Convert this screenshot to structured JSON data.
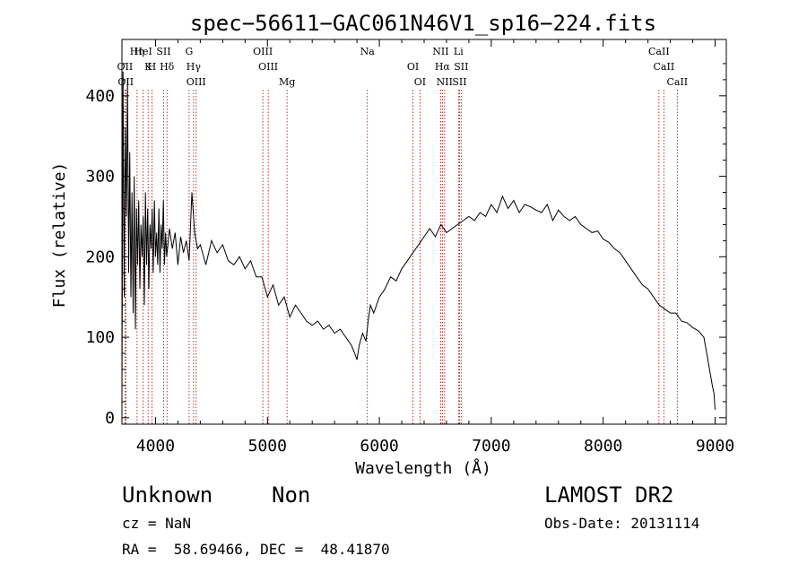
{
  "chart_data": {
    "type": "line",
    "title": "spec−56611−GAC061N46V1_sp16−224.fits",
    "xlabel": "Wavelength (Å)",
    "ylabel": "Flux (relative)",
    "xlim": [
      3700,
      9100
    ],
    "ylim": [
      -8,
      470
    ],
    "xticks": [
      4000,
      5000,
      6000,
      7000,
      8000,
      9000
    ],
    "yticks": [
      0,
      100,
      200,
      300,
      400
    ],
    "series": [
      {
        "x": [
          3700,
          3710,
          3720,
          3730,
          3740,
          3750,
          3760,
          3770,
          3780,
          3790,
          3800,
          3810,
          3820,
          3830,
          3840,
          3850,
          3860,
          3870,
          3880,
          3890,
          3900,
          3910,
          3920,
          3930,
          3940,
          3950,
          3960,
          3970,
          3980,
          3990,
          4000,
          4010,
          4020,
          4030,
          4040,
          4050,
          4060,
          4070,
          4080,
          4090,
          4100,
          4125,
          4150,
          4175,
          4200,
          4225,
          4250,
          4275,
          4300,
          4325,
          4350,
          4375,
          4400,
          4450,
          4500,
          4550,
          4600,
          4650,
          4700,
          4750,
          4800,
          4850,
          4900,
          4950,
          5000,
          5050,
          5100,
          5150,
          5200,
          5250,
          5300,
          5350,
          5400,
          5450,
          5500,
          5550,
          5600,
          5650,
          5700,
          5750,
          5780,
          5800,
          5820,
          5850,
          5880,
          5900,
          5920,
          5950,
          6000,
          6050,
          6100,
          6150,
          6200,
          6250,
          6300,
          6350,
          6400,
          6450,
          6500,
          6550,
          6600,
          6650,
          6700,
          6750,
          6800,
          6850,
          6900,
          6950,
          7000,
          7050,
          7100,
          7150,
          7200,
          7250,
          7300,
          7350,
          7400,
          7450,
          7500,
          7550,
          7600,
          7650,
          7700,
          7750,
          7800,
          7850,
          7900,
          7950,
          8000,
          8050,
          8100,
          8150,
          8200,
          8250,
          8300,
          8350,
          8400,
          8450,
          8500,
          8550,
          8600,
          8650,
          8700,
          8750,
          8800,
          8850,
          8900,
          8925,
          8950,
          8975,
          8990,
          9000
        ],
        "values": [
          30,
          430,
          150,
          360,
          250,
          420,
          180,
          330,
          150,
          280,
          130,
          300,
          110,
          260,
          190,
          270,
          160,
          240,
          200,
          250,
          140,
          280,
          190,
          260,
          160,
          240,
          210,
          260,
          180,
          270,
          200,
          230,
          190,
          260,
          180,
          240,
          210,
          270,
          190,
          230,
          200,
          235,
          210,
          230,
          190,
          225,
          205,
          220,
          195,
          280,
          230,
          210,
          215,
          190,
          220,
          205,
          215,
          195,
          190,
          200,
          185,
          195,
          175,
          175,
          150,
          165,
          140,
          150,
          125,
          140,
          130,
          120,
          115,
          120,
          110,
          115,
          105,
          110,
          100,
          90,
          80,
          72,
          90,
          105,
          95,
          120,
          140,
          130,
          150,
          160,
          175,
          170,
          185,
          195,
          205,
          215,
          225,
          235,
          225,
          240,
          230,
          235,
          240,
          245,
          250,
          245,
          255,
          250,
          265,
          255,
          275,
          260,
          270,
          255,
          265,
          262,
          258,
          255,
          265,
          245,
          258,
          250,
          245,
          250,
          240,
          235,
          230,
          232,
          222,
          218,
          210,
          205,
          195,
          185,
          175,
          165,
          160,
          150,
          140,
          135,
          130,
          130,
          120,
          118,
          112,
          108,
          100,
          80,
          60,
          40,
          30,
          10
        ]
      }
    ],
    "annotations": [
      {
        "wavelength": 3727,
        "rows": [
          "OII"
        ]
      },
      {
        "wavelength": 3734,
        "rows": [
          "",
          "OII"
        ]
      },
      {
        "wavelength": 3835,
        "rows": [
          "",
          "",
          "Hη"
        ]
      },
      {
        "wavelength": 3889,
        "rows": [
          "",
          "",
          "HeI"
        ]
      },
      {
        "wavelength": 3934,
        "rows": [
          "K"
        ]
      },
      {
        "wavelength": 3968,
        "rows": [
          "H"
        ]
      },
      {
        "wavelength": 4072,
        "rows": [
          "",
          "",
          "SII"
        ]
      },
      {
        "wavelength": 4102,
        "rows": [
          "Hδ"
        ]
      },
      {
        "wavelength": 4300,
        "rows": [
          "",
          "",
          "G"
        ]
      },
      {
        "wavelength": 4340,
        "rows": [
          "Hγ"
        ]
      },
      {
        "wavelength": 4363,
        "rows": [
          "",
          "OIII"
        ]
      },
      {
        "wavelength": 4959,
        "rows": [
          "",
          "",
          "OIII"
        ]
      },
      {
        "wavelength": 5007,
        "rows": [
          "OIII"
        ]
      },
      {
        "wavelength": 5175,
        "rows": [
          "",
          "Mg"
        ]
      },
      {
        "wavelength": 5893,
        "rows": [
          "",
          "",
          "Na"
        ]
      },
      {
        "wavelength": 6300,
        "rows": [
          "OI"
        ]
      },
      {
        "wavelength": 6363,
        "rows": [
          "",
          "OI"
        ]
      },
      {
        "wavelength": 6548,
        "rows": [
          "",
          "",
          "NII"
        ]
      },
      {
        "wavelength": 6563,
        "rows": [
          "Hα"
        ]
      },
      {
        "wavelength": 6583,
        "rows": [
          "",
          "NII"
        ]
      },
      {
        "wavelength": 6707,
        "rows": [
          "",
          "",
          "Li"
        ]
      },
      {
        "wavelength": 6716,
        "rows": [
          "",
          "SII"
        ]
      },
      {
        "wavelength": 6731,
        "rows": [
          "SII"
        ]
      },
      {
        "wavelength": 8498,
        "rows": [
          "",
          "",
          "CaII"
        ]
      },
      {
        "wavelength": 8542,
        "rows": [
          "CaII"
        ]
      },
      {
        "wavelength": 8662,
        "rows": [
          "",
          "CaII"
        ]
      }
    ]
  },
  "info": {
    "object_class": "Unknown",
    "subclass": "Non",
    "survey": "LAMOST DR2",
    "redshift": "cz = NaN",
    "obs_date": "Obs-Date: 20131114",
    "coords": "RA =  58.69466, DEC =  48.41870"
  }
}
